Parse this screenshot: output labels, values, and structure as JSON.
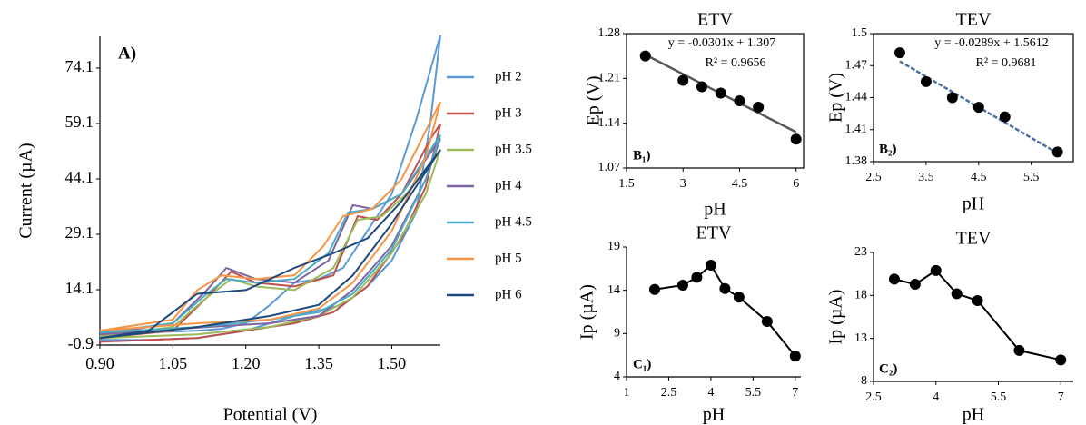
{
  "chart_data": [
    {
      "type": "line",
      "panel_label": "A)",
      "x_label": "Potential (V)",
      "y_label": "Current (µA)",
      "xlim": [
        0.9,
        1.6
      ],
      "xticks": [
        {
          "value": 0.9,
          "label": "0.90"
        },
        1.05,
        {
          "value": 1.2,
          "label": "1.20"
        },
        1.35,
        {
          "value": 1.5,
          "label": "1.50"
        }
      ],
      "ylim": [
        -0.9,
        82.7
      ],
      "yticks": [
        -0.9,
        14.1,
        29.1,
        44.1,
        59.1,
        74.1
      ],
      "legend": "right",
      "series": [
        {
          "name": "pH 2",
          "color": "#5b9bd5",
          "x": [
            0.9,
            1.0,
            1.1,
            1.15,
            1.2,
            1.25,
            1.3,
            1.35,
            1.4,
            1.45,
            1.5,
            1.55,
            1.6,
            1.58,
            1.55,
            1.5,
            1.45,
            1.4,
            1.3,
            1.2,
            1.1,
            1.0,
            0.9
          ],
          "values": [
            2,
            2.5,
            3,
            3.5,
            5,
            10,
            16,
            17,
            20,
            30,
            40,
            60,
            83,
            60,
            35,
            22,
            15,
            10,
            7,
            3,
            1,
            0.5,
            0.5
          ]
        },
        {
          "name": "pH 3",
          "color": "#c0504d",
          "x": [
            0.9,
            1.05,
            1.12,
            1.17,
            1.22,
            1.3,
            1.38,
            1.43,
            1.47,
            1.52,
            1.58,
            1.6,
            1.57,
            1.52,
            1.45,
            1.38,
            1.3,
            1.2,
            1.1,
            0.9
          ],
          "values": [
            1,
            3,
            12,
            19,
            16,
            15,
            18,
            34,
            33,
            40,
            55,
            59,
            42,
            28,
            15,
            8,
            5,
            3,
            1,
            0
          ]
        },
        {
          "name": "pH 3.5",
          "color": "#9bbb59",
          "x": [
            0.9,
            1.05,
            1.12,
            1.17,
            1.22,
            1.3,
            1.38,
            1.43,
            1.48,
            1.53,
            1.6,
            1.57,
            1.5,
            1.42,
            1.35,
            1.25,
            1.1,
            0.9
          ],
          "values": [
            1.5,
            4,
            12,
            17,
            15,
            14,
            20,
            33,
            34,
            40,
            52,
            40,
            24,
            12,
            7,
            4,
            2,
            1
          ]
        },
        {
          "name": "pH 4",
          "color": "#8064a2",
          "x": [
            0.9,
            1.05,
            1.12,
            1.16,
            1.22,
            1.3,
            1.37,
            1.42,
            1.46,
            1.52,
            1.6,
            1.57,
            1.5,
            1.42,
            1.35,
            1.25,
            1.12,
            0.9
          ],
          "values": [
            2,
            5,
            14,
            20,
            17,
            16,
            22,
            37,
            36,
            40,
            55,
            44,
            26,
            14,
            7,
            5,
            4,
            2
          ]
        },
        {
          "name": "pH 4.5",
          "color": "#4bacc6",
          "x": [
            0.9,
            1.05,
            1.12,
            1.16,
            1.22,
            1.3,
            1.37,
            1.41,
            1.46,
            1.52,
            1.6,
            1.57,
            1.5,
            1.42,
            1.35,
            1.25,
            1.1,
            0.9
          ],
          "values": [
            2.5,
            5,
            13,
            17,
            16,
            17,
            24,
            35,
            36,
            40,
            56,
            44,
            25,
            13,
            8,
            6,
            4,
            2.5
          ]
        },
        {
          "name": "pH 5",
          "color": "#f79646",
          "x": [
            0.9,
            1.05,
            1.1,
            1.15,
            1.22,
            1.3,
            1.36,
            1.4,
            1.46,
            1.52,
            1.6,
            1.57,
            1.5,
            1.42,
            1.35,
            1.25,
            1.1,
            0.9
          ],
          "values": [
            3,
            6,
            14,
            18,
            17,
            18,
            26,
            34,
            36,
            44,
            65,
            50,
            30,
            16,
            9,
            6,
            5,
            3
          ]
        },
        {
          "name": "pH 6",
          "color": "#1f497d",
          "x": [
            0.9,
            1.0,
            1.05,
            1.1,
            1.2,
            1.3,
            1.38,
            1.45,
            1.52,
            1.6,
            1.57,
            1.5,
            1.42,
            1.35,
            1.25,
            1.1,
            0.9
          ],
          "values": [
            1,
            3,
            8,
            13,
            14,
            20,
            24,
            28,
            38,
            52,
            46,
            32,
            18,
            10,
            7,
            4,
            1
          ]
        }
      ]
    },
    {
      "type": "scatter",
      "title": "ETV",
      "panel_label": "B₁)",
      "x_label": "pH",
      "y_label": "Ep (V)",
      "frame": true,
      "color": "#000000",
      "xlim": [
        1.5,
        6.2
      ],
      "xticks": [
        1.5,
        3,
        4.5,
        6
      ],
      "ylim": [
        1.07,
        1.28
      ],
      "yticks": [
        1.07,
        1.14,
        1.21,
        1.28
      ],
      "x": [
        2,
        3,
        3.5,
        4,
        4.5,
        5,
        6
      ],
      "values": [
        1.245,
        1.207,
        1.197,
        1.187,
        1.175,
        1.165,
        1.115
      ],
      "trendline": {
        "color": "#595959",
        "x": [
          2,
          6
        ],
        "y": [
          1.247,
          1.126
        ]
      },
      "annotations": [
        "y = -0.0301x + 1.307",
        "R² = 0.9656"
      ]
    },
    {
      "type": "scatter",
      "title": "TEV",
      "panel_label": "B₂)",
      "x_label": "pH",
      "y_label": "Ep (V)",
      "frame": true,
      "color": "#000000",
      "xlim": [
        2.5,
        6.3
      ],
      "xticks": [
        2.5,
        3.5,
        4.5,
        5.5
      ],
      "ylim": [
        1.38,
        1.5
      ],
      "yticks": [
        1.38,
        1.41,
        1.44,
        1.47,
        1.5
      ],
      "x": [
        3,
        3.5,
        4,
        4.5,
        5,
        6
      ],
      "values": [
        1.482,
        1.455,
        1.44,
        1.431,
        1.422,
        1.389
      ],
      "trendline": {
        "color": "#4f6f9f",
        "x": [
          3,
          6
        ],
        "y": [
          1.474,
          1.388
        ]
      },
      "annotations": [
        "y = -0.0289x + 1.5612",
        "R² = 0.9681"
      ]
    },
    {
      "type": "line",
      "title": "ETV",
      "panel_label": "C₁)",
      "x_label": "pH",
      "y_label": "Ip (µA)",
      "color": "#000000",
      "markers": true,
      "xlim": [
        1,
        7.2
      ],
      "xticks": [
        1,
        2.5,
        4,
        5.5,
        7
      ],
      "ylim": [
        4,
        19
      ],
      "yticks": [
        4,
        9,
        14,
        19
      ],
      "x": [
        2,
        3,
        3.5,
        4,
        4.5,
        5,
        6,
        7
      ],
      "values": [
        14.1,
        14.6,
        15.5,
        16.9,
        14.2,
        13.2,
        10.4,
        6.4
      ]
    },
    {
      "type": "line",
      "title": "TEV",
      "panel_label": "C₂)",
      "x_label": "pH",
      "y_label": "Ip  (µA)",
      "color": "#000000",
      "markers": true,
      "xlim": [
        2.5,
        7.3
      ],
      "xticks": [
        2.5,
        4,
        5.5,
        7
      ],
      "ylim": [
        8,
        23
      ],
      "yticks": [
        8,
        13,
        18,
        23
      ],
      "x": [
        3,
        3.5,
        4,
        4.5,
        5,
        6,
        7
      ],
      "values": [
        19.9,
        19.3,
        20.9,
        18.2,
        17.4,
        11.6,
        10.5
      ]
    }
  ]
}
